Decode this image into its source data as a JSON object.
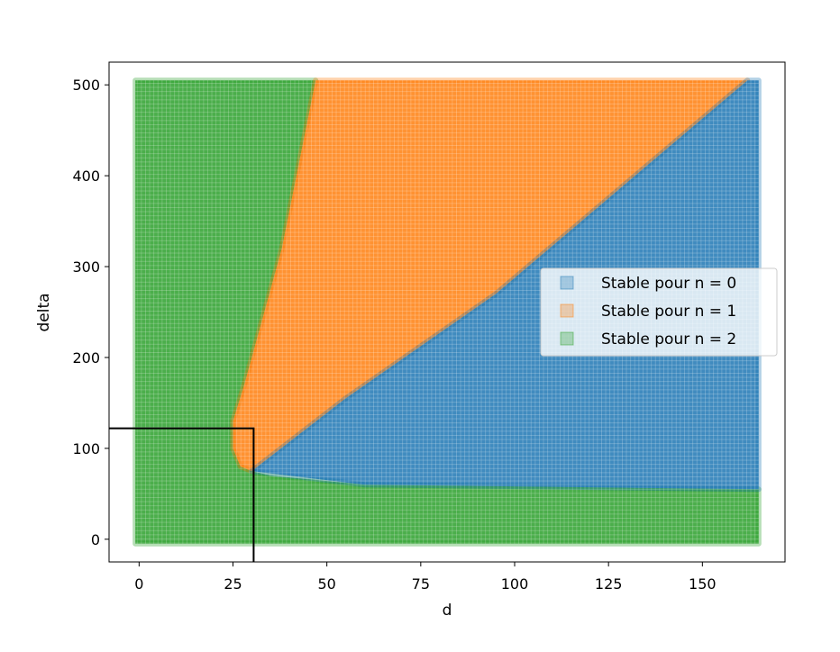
{
  "chart_data": {
    "type": "scatter",
    "title": "",
    "xlabel": "d",
    "ylabel": "delta",
    "xlim": [
      -8,
      172
    ],
    "ylim": [
      -25,
      525
    ],
    "xticks": [
      0,
      25,
      50,
      75,
      100,
      125,
      150
    ],
    "yticks": [
      0,
      100,
      200,
      300,
      400,
      500
    ],
    "grid": false,
    "legend_position": "center right",
    "series": [
      {
        "name": "Stable pour n = 0",
        "color": "#1f77b4",
        "region": [
          [
            30,
            75
          ],
          [
            60,
            60
          ],
          [
            165,
            55
          ],
          [
            165,
            505
          ],
          [
            162,
            505
          ],
          [
            95,
            270
          ],
          [
            55,
            155
          ],
          [
            30,
            75
          ]
        ]
      },
      {
        "name": "Stable pour n = 1",
        "color": "#ff7f0e",
        "region": [
          [
            47,
            505
          ],
          [
            162,
            505
          ],
          [
            95,
            270
          ],
          [
            55,
            155
          ],
          [
            30,
            75
          ],
          [
            27,
            80
          ],
          [
            25,
            100
          ],
          [
            25,
            130
          ],
          [
            28,
            170
          ],
          [
            32,
            230
          ],
          [
            38,
            320
          ],
          [
            47,
            505
          ]
        ]
      },
      {
        "name": "Stable pour n = 2",
        "color": "#2ca02c",
        "regions": [
          [
            [
              -1,
              -5
            ],
            [
              -1,
              505
            ],
            [
              47,
              505
            ],
            [
              38,
              320
            ],
            [
              32,
              230
            ],
            [
              28,
              170
            ],
            [
              25,
              130
            ],
            [
              25,
              100
            ],
            [
              27,
              80
            ],
            [
              30,
              75
            ],
            [
              35,
              70
            ],
            [
              60,
              60
            ],
            [
              165,
              55
            ],
            [
              165,
              -5
            ]
          ]
        ]
      }
    ],
    "annotations": [
      {
        "type": "rectangle",
        "x": [
          -8,
          30.5
        ],
        "y": [
          -25,
          122
        ],
        "color": "#000000"
      }
    ]
  }
}
